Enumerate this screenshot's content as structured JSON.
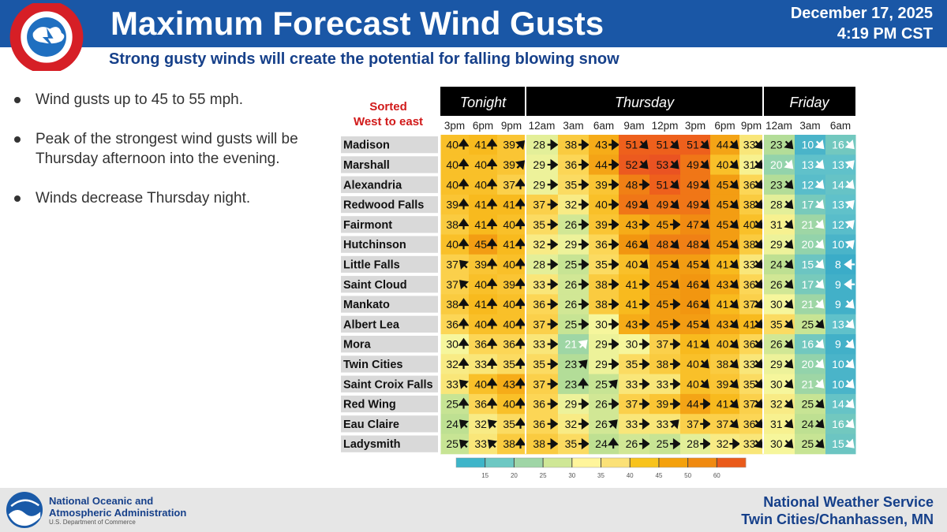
{
  "header": {
    "title": "Maximum Forecast Wind Gusts",
    "date": "December 17, 2025",
    "time": "4:19 PM CST",
    "subtitle": "Strong gusty winds will create the potential for falling blowing snow",
    "logo_text": "NATIONAL WEATHER SERVICE"
  },
  "bullets": [
    "Wind gusts up to 45 to 55 mph.",
    "Peak of the strongest wind gusts will be Thursday afternoon into the evening.",
    "Winds decrease Thursday night."
  ],
  "table": {
    "sort_label_1": "Sorted",
    "sort_label_2": "West to east",
    "day_groups": [
      {
        "label": "Tonight",
        "span": 3
      },
      {
        "label": "Thursday",
        "span": 8
      },
      {
        "label": "Friday",
        "span": 3
      }
    ],
    "times": [
      "3pm",
      "6pm",
      "9pm",
      "12am",
      "3am",
      "6am",
      "9am",
      "12pm",
      "3pm",
      "6pm",
      "9pm",
      "12am",
      "3am",
      "6am"
    ],
    "rows": [
      {
        "city": "Madison",
        "values": [
          40,
          41,
          39,
          28,
          38,
          43,
          51,
          51,
          51,
          44,
          33,
          23,
          10,
          16
        ],
        "dirs": [
          "N",
          "N",
          "NE",
          "E",
          "E",
          "E",
          "SE",
          "SE",
          "SE",
          "SE",
          "SE",
          "SE",
          "SE",
          "SE"
        ]
      },
      {
        "city": "Marshall",
        "values": [
          40,
          40,
          39,
          29,
          36,
          44,
          52,
          53,
          49,
          40,
          31,
          20,
          13,
          13
        ],
        "dirs": [
          "N",
          "N",
          "NE",
          "E",
          "E",
          "E",
          "SE",
          "SE",
          "SE",
          "SE",
          "SE",
          "SE",
          "SE",
          "NE"
        ]
      },
      {
        "city": "Alexandria",
        "values": [
          40,
          40,
          37,
          29,
          35,
          39,
          48,
          51,
          49,
          45,
          36,
          23,
          12,
          14
        ],
        "dirs": [
          "N",
          "N",
          "N",
          "E",
          "E",
          "E",
          "E",
          "SE",
          "SE",
          "SE",
          "SE",
          "SE",
          "SE",
          "SE"
        ]
      },
      {
        "city": "Redwood Falls",
        "values": [
          39,
          41,
          41,
          37,
          32,
          40,
          49,
          49,
          49,
          45,
          38,
          28,
          17,
          13
        ],
        "dirs": [
          "N",
          "N",
          "N",
          "E",
          "E",
          "E",
          "SE",
          "SE",
          "SE",
          "SE",
          "SE",
          "SE",
          "SE",
          "NE"
        ]
      },
      {
        "city": "Fairmont",
        "values": [
          38,
          41,
          40,
          35,
          26,
          39,
          43,
          45,
          47,
          45,
          40,
          31,
          21,
          12
        ],
        "dirs": [
          "N",
          "N",
          "N",
          "E",
          "E",
          "E",
          "E",
          "E",
          "SE",
          "SE",
          "SE",
          "SE",
          "SE",
          "NE"
        ]
      },
      {
        "city": "Hutchinson",
        "values": [
          40,
          45,
          41,
          32,
          29,
          36,
          46,
          48,
          48,
          45,
          38,
          29,
          20,
          10
        ],
        "dirs": [
          "N",
          "N",
          "N",
          "E",
          "E",
          "E",
          "SE",
          "SE",
          "SE",
          "SE",
          "SE",
          "SE",
          "SE",
          "NE"
        ]
      },
      {
        "city": "Little Falls",
        "values": [
          37,
          39,
          40,
          28,
          25,
          35,
          40,
          45,
          45,
          41,
          33,
          24,
          15,
          8
        ],
        "dirs": [
          "NW",
          "N",
          "N",
          "E",
          "E",
          "E",
          "SE",
          "SE",
          "SE",
          "SE",
          "SE",
          "SE",
          "SE",
          "W"
        ]
      },
      {
        "city": "Saint Cloud",
        "values": [
          37,
          40,
          39,
          33,
          26,
          38,
          41,
          45,
          46,
          43,
          36,
          26,
          17,
          9
        ],
        "dirs": [
          "NW",
          "N",
          "N",
          "E",
          "E",
          "E",
          "E",
          "SE",
          "SE",
          "SE",
          "SE",
          "SE",
          "SE",
          "W"
        ]
      },
      {
        "city": "Mankato",
        "values": [
          38,
          41,
          40,
          36,
          26,
          38,
          41,
          45,
          46,
          41,
          37,
          30,
          21,
          9
        ],
        "dirs": [
          "N",
          "N",
          "N",
          "E",
          "E",
          "E",
          "E",
          "E",
          "SE",
          "SE",
          "SE",
          "SE",
          "SE",
          "SE"
        ]
      },
      {
        "city": "Albert Lea",
        "values": [
          36,
          40,
          40,
          37,
          25,
          30,
          43,
          45,
          45,
          43,
          41,
          35,
          25,
          13
        ],
        "dirs": [
          "N",
          "N",
          "N",
          "E",
          "E",
          "E",
          "E",
          "E",
          "SE",
          "SE",
          "SE",
          "SE",
          "SE",
          "SE"
        ]
      },
      {
        "city": "Mora",
        "values": [
          30,
          36,
          36,
          33,
          21,
          29,
          30,
          37,
          41,
          40,
          36,
          26,
          16,
          9
        ],
        "dirs": [
          "N",
          "N",
          "N",
          "E",
          "NE",
          "E",
          "E",
          "E",
          "SE",
          "SE",
          "SE",
          "SE",
          "SE",
          "SE"
        ]
      },
      {
        "city": "Twin Cities",
        "values": [
          32,
          33,
          35,
          35,
          23,
          29,
          35,
          38,
          40,
          38,
          33,
          29,
          20,
          10
        ],
        "dirs": [
          "N",
          "N",
          "N",
          "E",
          "NE",
          "E",
          "E",
          "E",
          "SE",
          "SE",
          "SE",
          "SE",
          "SE",
          "SE"
        ]
      },
      {
        "city": "Saint Croix Falls",
        "values": [
          33,
          40,
          43,
          37,
          23,
          25,
          33,
          33,
          40,
          39,
          35,
          30,
          21,
          10
        ],
        "dirs": [
          "NW",
          "N",
          "N",
          "E",
          "N",
          "NE",
          "E",
          "E",
          "SE",
          "SE",
          "SE",
          "SE",
          "SE",
          "SE"
        ]
      },
      {
        "city": "Red Wing",
        "values": [
          25,
          36,
          40,
          36,
          29,
          26,
          37,
          39,
          44,
          41,
          37,
          32,
          25,
          14
        ],
        "dirs": [
          "N",
          "N",
          "N",
          "E",
          "E",
          "E",
          "E",
          "E",
          "E",
          "SE",
          "SE",
          "SE",
          "SE",
          "SE"
        ]
      },
      {
        "city": "Eau Claire",
        "values": [
          24,
          32,
          35,
          36,
          32,
          26,
          33,
          33,
          37,
          37,
          36,
          31,
          24,
          16
        ],
        "dirs": [
          "NW",
          "NW",
          "N",
          "E",
          "E",
          "NE",
          "E",
          "NE",
          "E",
          "SE",
          "SE",
          "SE",
          "SE",
          "SE"
        ]
      },
      {
        "city": "Ladysmith",
        "values": [
          25,
          33,
          38,
          38,
          35,
          24,
          26,
          25,
          28,
          32,
          33,
          30,
          25,
          15
        ],
        "dirs": [
          "NW",
          "NW",
          "N",
          "E",
          "E",
          "N",
          "E",
          "E",
          "E",
          "E",
          "SE",
          "SE",
          "SE",
          "SE"
        ]
      }
    ]
  },
  "legend": {
    "ticks": [
      "15",
      "20",
      "25",
      "30",
      "35",
      "40",
      "45",
      "50",
      "60"
    ],
    "colors": [
      "#3eb5c9",
      "#6dc8c3",
      "#9fd5a6",
      "#cfe796",
      "#fff59b",
      "#fbe177",
      "#f8c31c",
      "#f4a10c",
      "#f08a10",
      "#ea5a1a"
    ]
  },
  "footer": {
    "noaa_line1": "National Oceanic and",
    "noaa_line2": "Atmospheric Administration",
    "noaa_dept": "U.S. Department of Commerce",
    "noaa_logo_text": "NOAA",
    "nws_line1": "National Weather Service",
    "nws_line2": "Twin Cities/Chanhassen, MN"
  }
}
